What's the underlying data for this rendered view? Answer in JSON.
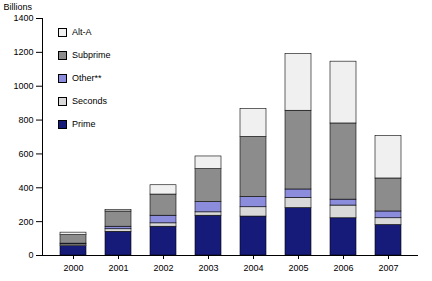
{
  "chart_data": {
    "type": "bar",
    "stacked": true,
    "y_label": "Billions",
    "categories": [
      "2000",
      "2001",
      "2002",
      "2003",
      "2004",
      "2005",
      "2006",
      "2007"
    ],
    "ylim": [
      0,
      1400
    ],
    "yticks": [
      0,
      200,
      400,
      600,
      800,
      1000,
      1200,
      1400
    ],
    "grid": false,
    "legend": "top-left",
    "series": [
      {
        "name": "Prime",
        "color": "#161a78",
        "values": [
          55,
          140,
          170,
          235,
          230,
          280,
          220,
          180
        ]
      },
      {
        "name": "Seconds",
        "color": "#d9d9d9",
        "values": [
          10,
          15,
          20,
          20,
          55,
          60,
          75,
          40
        ]
      },
      {
        "name": "Other**",
        "color": "#8c8cdc",
        "values": [
          5,
          15,
          45,
          60,
          60,
          50,
          35,
          40
        ]
      },
      {
        "name": "Subprime",
        "color": "#8c8c8c",
        "values": [
          50,
          90,
          125,
          195,
          355,
          465,
          450,
          195
        ]
      },
      {
        "name": "Alt-A",
        "color": "#f0f0f0",
        "values": [
          15,
          10,
          55,
          75,
          165,
          335,
          365,
          250
        ]
      }
    ]
  }
}
